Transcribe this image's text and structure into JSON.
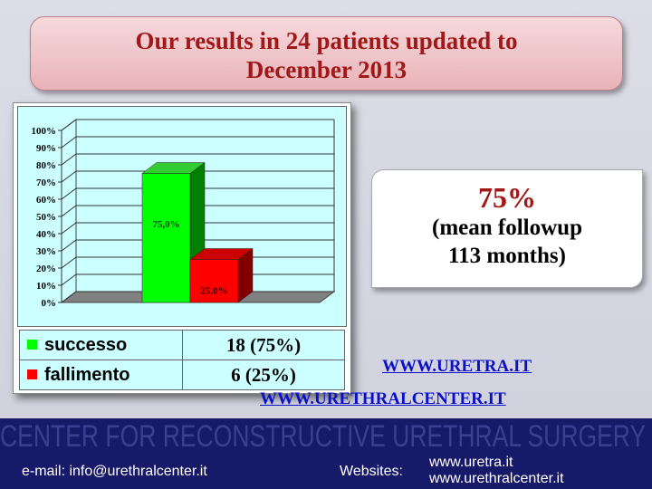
{
  "title": {
    "line1": "Our results in 24 patients updated to",
    "line2": "December 2013"
  },
  "chart_data": {
    "type": "bar",
    "style": "3d-column",
    "categories": [
      "successo",
      "fallimento"
    ],
    "values": [
      75.0,
      25.0
    ],
    "data_labels": [
      "75,0%",
      "25,0%"
    ],
    "colors": [
      "#00ff00",
      "#ff0000"
    ],
    "ylim": [
      0,
      100
    ],
    "yticks": [
      "0%",
      "10%",
      "20%",
      "30%",
      "40%",
      "50%",
      "60%",
      "70%",
      "80%",
      "90%",
      "100%"
    ],
    "grid": true,
    "legend_table": [
      {
        "label": "successo",
        "value": "18 (75%)",
        "color": "#00ff00"
      },
      {
        "label": "fallimento",
        "value": "6 (25%)",
        "color": "#ff0000"
      }
    ]
  },
  "stat": {
    "value": "75%",
    "line1": "(mean followup",
    "line2": "113 months)"
  },
  "links": [
    "WWW.URETRA.IT",
    "WWW.URETHRALCENTER.IT "
  ],
  "footer": {
    "email": "e-mail: info@urethralcenter.it",
    "websites_label": "Websites:",
    "web1": "www.uretra.it",
    "web2": "www.urethralcenter.it",
    "watermark": "CENTER FOR RECONSTRUCTIVE URETHRAL SURGERY"
  }
}
